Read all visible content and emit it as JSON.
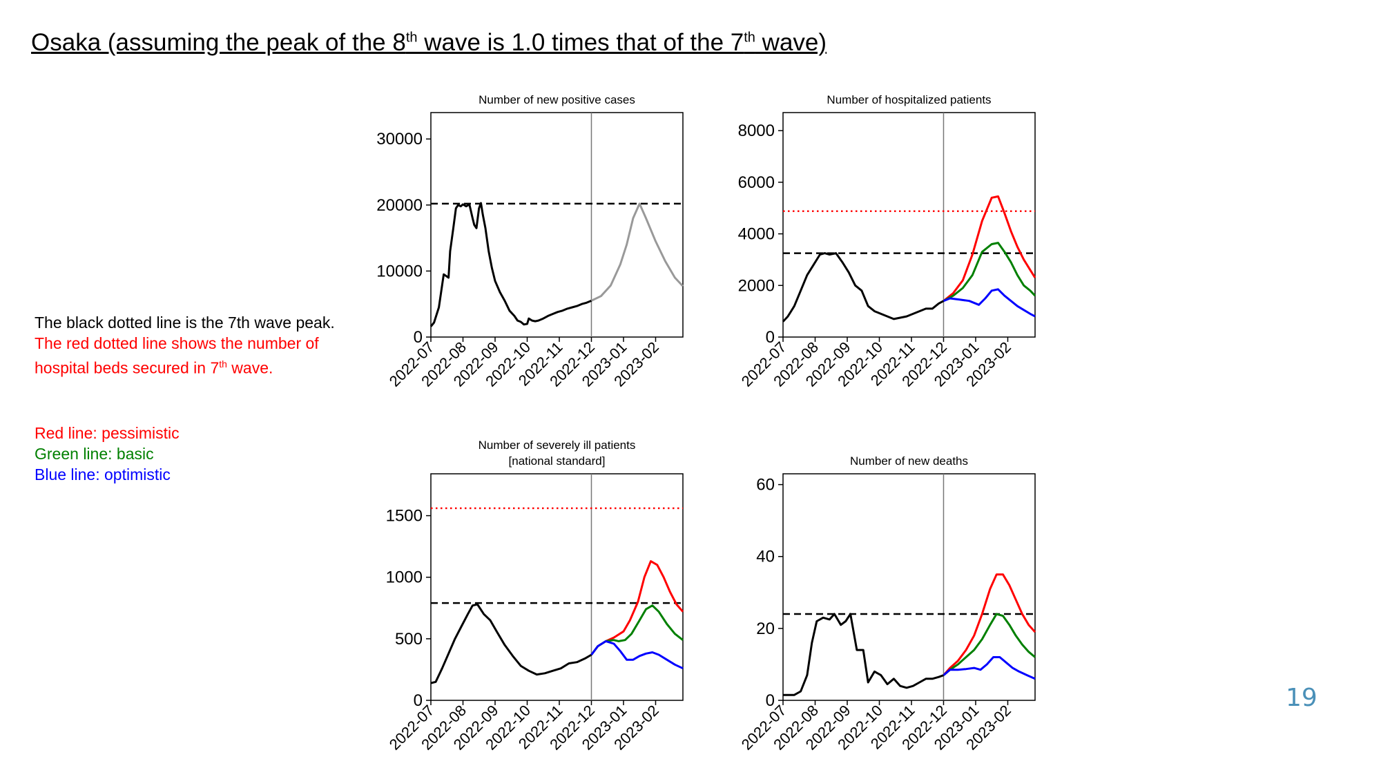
{
  "slide": {
    "title_pre": "Osaka (assuming the peak of the 8",
    "title_sup1": "th",
    "title_mid": " wave is 1.0 times that of the 7",
    "title_sup2": "th",
    "title_post": " wave)",
    "page_number": "19"
  },
  "notes": {
    "black_line": "The black dotted line is the 7th wave peak.",
    "red_line_1": "The red dotted line shows the number of",
    "red_line_2_pre": "hospital beds secured in 7",
    "red_line_2_sup": "th",
    "red_line_2_post": " wave."
  },
  "legend": {
    "red": "Red line: pessimistic",
    "green": "Green line: basic",
    "blue": "Blue line: optimistic"
  },
  "colors": {
    "observed": "#000000",
    "projection_gray": "#999999",
    "pessimistic": "#ff0000",
    "basic": "#008000",
    "optimistic": "#0000ff",
    "divider": "#777777",
    "page_number": "#4a90b8"
  },
  "chart_data": [
    {
      "type": "line",
      "title": [
        "Number of new positive cases"
      ],
      "categories": [
        "2022-07",
        "2022-08",
        "2022-09",
        "2022-10",
        "2022-11",
        "2022-12",
        "2023-01",
        "2023-02"
      ],
      "xlim": [
        0,
        7.85
      ],
      "ylim": [
        0,
        34000
      ],
      "yticks": [
        0,
        10000,
        20000,
        30000
      ],
      "divider_x": 5,
      "hlines": [
        {
          "y": 20200,
          "style": "black-dashed"
        }
      ],
      "series": [
        {
          "style": "observed",
          "x": [
            0,
            0.1,
            0.25,
            0.4,
            0.55,
            0.6,
            0.7,
            0.78,
            0.85,
            0.93,
            1.0,
            1.1,
            1.2,
            1.3,
            1.35,
            1.42,
            1.5,
            1.56,
            1.62,
            1.7,
            1.8,
            1.9,
            2.0,
            2.15,
            2.3,
            2.45,
            2.6,
            2.7,
            2.8,
            2.9,
            3.0,
            3.05,
            3.15,
            3.25,
            3.35,
            3.5,
            3.65,
            3.8,
            3.95,
            4.1,
            4.25,
            4.4,
            4.55,
            4.7,
            4.85,
            5.0
          ],
          "y": [
            1600,
            2200,
            4500,
            9500,
            9000,
            13000,
            16500,
            19500,
            20000,
            19800,
            20100,
            19800,
            20100,
            18000,
            17000,
            16500,
            19500,
            20300,
            18500,
            16500,
            13000,
            10500,
            8500,
            6800,
            5500,
            4000,
            3200,
            2500,
            2300,
            1900,
            2000,
            2800,
            2500,
            2400,
            2500,
            2800,
            3200,
            3500,
            3800,
            4000,
            4300,
            4500,
            4700,
            5000,
            5200,
            5500
          ]
        },
        {
          "style": "projection",
          "x": [
            5.0,
            5.3,
            5.6,
            5.9,
            6.1,
            6.3,
            6.5,
            6.7,
            7.0,
            7.3,
            7.6,
            7.85
          ],
          "y": [
            5500,
            6200,
            7800,
            11000,
            14000,
            18000,
            20200,
            18000,
            14500,
            11500,
            9000,
            7700
          ]
        }
      ]
    },
    {
      "type": "line",
      "title": [
        "Number of hospitalized patients"
      ],
      "categories": [
        "2022-07",
        "2022-08",
        "2022-09",
        "2022-10",
        "2022-11",
        "2022-12",
        "2023-01",
        "2023-02"
      ],
      "xlim": [
        0,
        7.85
      ],
      "ylim": [
        0,
        8700
      ],
      "yticks": [
        0,
        2000,
        4000,
        6000,
        8000
      ],
      "divider_x": 5,
      "hlines": [
        {
          "y": 3250,
          "style": "black-dashed"
        },
        {
          "y": 4880,
          "style": "red-dotted"
        }
      ],
      "series": [
        {
          "style": "observed",
          "x": [
            0,
            0.15,
            0.35,
            0.55,
            0.75,
            0.95,
            1.15,
            1.3,
            1.45,
            1.65,
            1.85,
            2.05,
            2.25,
            2.45,
            2.65,
            2.85,
            3.05,
            3.25,
            3.45,
            3.65,
            3.85,
            4.05,
            4.25,
            4.45,
            4.65,
            4.85,
            5.0
          ],
          "y": [
            600,
            800,
            1200,
            1800,
            2400,
            2800,
            3200,
            3250,
            3200,
            3250,
            2900,
            2500,
            2000,
            1800,
            1200,
            1000,
            900,
            800,
            700,
            750,
            800,
            900,
            1000,
            1100,
            1100,
            1300,
            1400
          ]
        },
        {
          "style": "pessimistic",
          "x": [
            5.0,
            5.3,
            5.6,
            5.9,
            6.2,
            6.5,
            6.7,
            6.9,
            7.1,
            7.3,
            7.5,
            7.7,
            7.85
          ],
          "y": [
            1400,
            1700,
            2200,
            3200,
            4500,
            5400,
            5450,
            4800,
            4100,
            3500,
            3000,
            2600,
            2300
          ]
        },
        {
          "style": "basic",
          "x": [
            5.0,
            5.3,
            5.6,
            5.9,
            6.2,
            6.5,
            6.7,
            6.9,
            7.1,
            7.3,
            7.5,
            7.7,
            7.85
          ],
          "y": [
            1400,
            1600,
            1900,
            2400,
            3300,
            3600,
            3650,
            3300,
            2900,
            2400,
            2000,
            1800,
            1600
          ]
        },
        {
          "style": "optimistic",
          "x": [
            5.0,
            5.2,
            5.5,
            5.8,
            6.1,
            6.3,
            6.5,
            6.7,
            6.9,
            7.1,
            7.3,
            7.5,
            7.7,
            7.85
          ],
          "y": [
            1400,
            1500,
            1450,
            1400,
            1250,
            1500,
            1800,
            1850,
            1600,
            1400,
            1200,
            1050,
            900,
            800
          ]
        }
      ]
    },
    {
      "type": "line",
      "title": [
        "Number of severely ill patients",
        "[national standard]"
      ],
      "categories": [
        "2022-07",
        "2022-08",
        "2022-09",
        "2022-10",
        "2022-11",
        "2022-12",
        "2023-01",
        "2023-02"
      ],
      "xlim": [
        0,
        7.85
      ],
      "ylim": [
        0,
        1840
      ],
      "yticks": [
        0,
        500,
        1000,
        1500
      ],
      "divider_x": 5,
      "hlines": [
        {
          "y": 790,
          "style": "black-dashed"
        },
        {
          "y": 1560,
          "style": "red-dotted"
        }
      ],
      "series": [
        {
          "style": "observed",
          "x": [
            0,
            0.15,
            0.35,
            0.55,
            0.75,
            0.95,
            1.15,
            1.3,
            1.45,
            1.65,
            1.85,
            2.05,
            2.3,
            2.55,
            2.8,
            3.05,
            3.3,
            3.55,
            3.8,
            4.05,
            4.3,
            4.55,
            4.8,
            5.0
          ],
          "y": [
            140,
            150,
            260,
            380,
            500,
            600,
            700,
            770,
            780,
            700,
            650,
            560,
            450,
            360,
            280,
            240,
            210,
            220,
            240,
            260,
            300,
            310,
            340,
            370
          ]
        },
        {
          "style": "pessimistic",
          "x": [
            5.0,
            5.2,
            5.45,
            5.7,
            6.0,
            6.2,
            6.45,
            6.65,
            6.85,
            7.05,
            7.25,
            7.45,
            7.65,
            7.85
          ],
          "y": [
            370,
            440,
            480,
            510,
            560,
            650,
            800,
            1000,
            1130,
            1100,
            1000,
            880,
            780,
            720
          ]
        },
        {
          "style": "basic",
          "x": [
            5.0,
            5.2,
            5.45,
            5.7,
            5.85,
            6.05,
            6.25,
            6.5,
            6.7,
            6.9,
            7.1,
            7.35,
            7.6,
            7.85
          ],
          "y": [
            370,
            440,
            480,
            490,
            480,
            490,
            540,
            650,
            740,
            770,
            720,
            620,
            540,
            490
          ]
        },
        {
          "style": "optimistic",
          "x": [
            5.0,
            5.2,
            5.45,
            5.7,
            5.9,
            6.1,
            6.3,
            6.5,
            6.7,
            6.9,
            7.1,
            7.35,
            7.6,
            7.85
          ],
          "y": [
            370,
            440,
            480,
            460,
            400,
            330,
            330,
            360,
            380,
            390,
            370,
            330,
            290,
            260
          ]
        }
      ]
    },
    {
      "type": "line",
      "title": [
        "Number of new deaths"
      ],
      "categories": [
        "2022-07",
        "2022-08",
        "2022-09",
        "2022-10",
        "2022-11",
        "2022-12",
        "2023-01",
        "2023-02"
      ],
      "xlim": [
        0,
        7.85
      ],
      "ylim": [
        0,
        63
      ],
      "yticks": [
        0,
        20,
        40,
        60
      ],
      "divider_x": 5,
      "hlines": [
        {
          "y": 24,
          "style": "black-dashed"
        }
      ],
      "series": [
        {
          "style": "observed",
          "x": [
            0,
            0.15,
            0.35,
            0.55,
            0.75,
            0.9,
            1.05,
            1.25,
            1.45,
            1.6,
            1.8,
            1.95,
            2.1,
            2.3,
            2.5,
            2.65,
            2.85,
            3.05,
            3.25,
            3.45,
            3.65,
            3.85,
            4.05,
            4.25,
            4.45,
            4.65,
            4.85,
            5.0
          ],
          "y": [
            1.5,
            1.5,
            1.5,
            2.5,
            7,
            16,
            22,
            23,
            22.5,
            24,
            21,
            22,
            24,
            14,
            14,
            5,
            8,
            7,
            4.5,
            6,
            4,
            3.5,
            4,
            5,
            6,
            6,
            6.5,
            7
          ]
        },
        {
          "style": "pessimistic",
          "x": [
            5.0,
            5.2,
            5.45,
            5.7,
            5.95,
            6.2,
            6.45,
            6.65,
            6.85,
            7.05,
            7.25,
            7.45,
            7.65,
            7.85
          ],
          "y": [
            7,
            9,
            11,
            14,
            18,
            24,
            31,
            35,
            35,
            32,
            28,
            24,
            21,
            19
          ]
        },
        {
          "style": "basic",
          "x": [
            5.0,
            5.2,
            5.45,
            5.7,
            5.95,
            6.2,
            6.45,
            6.65,
            6.85,
            7.05,
            7.25,
            7.45,
            7.65,
            7.85
          ],
          "y": [
            7,
            8.5,
            10,
            12,
            14,
            17,
            21,
            24,
            23.5,
            21,
            18,
            15.5,
            13.5,
            12
          ]
        },
        {
          "style": "optimistic",
          "x": [
            5.0,
            5.2,
            5.45,
            5.7,
            5.95,
            6.15,
            6.35,
            6.55,
            6.75,
            6.95,
            7.15,
            7.35,
            7.6,
            7.85
          ],
          "y": [
            7,
            8.5,
            8.5,
            8.7,
            9,
            8.5,
            10,
            12,
            12,
            10.5,
            9,
            8,
            7,
            6
          ]
        }
      ]
    }
  ]
}
